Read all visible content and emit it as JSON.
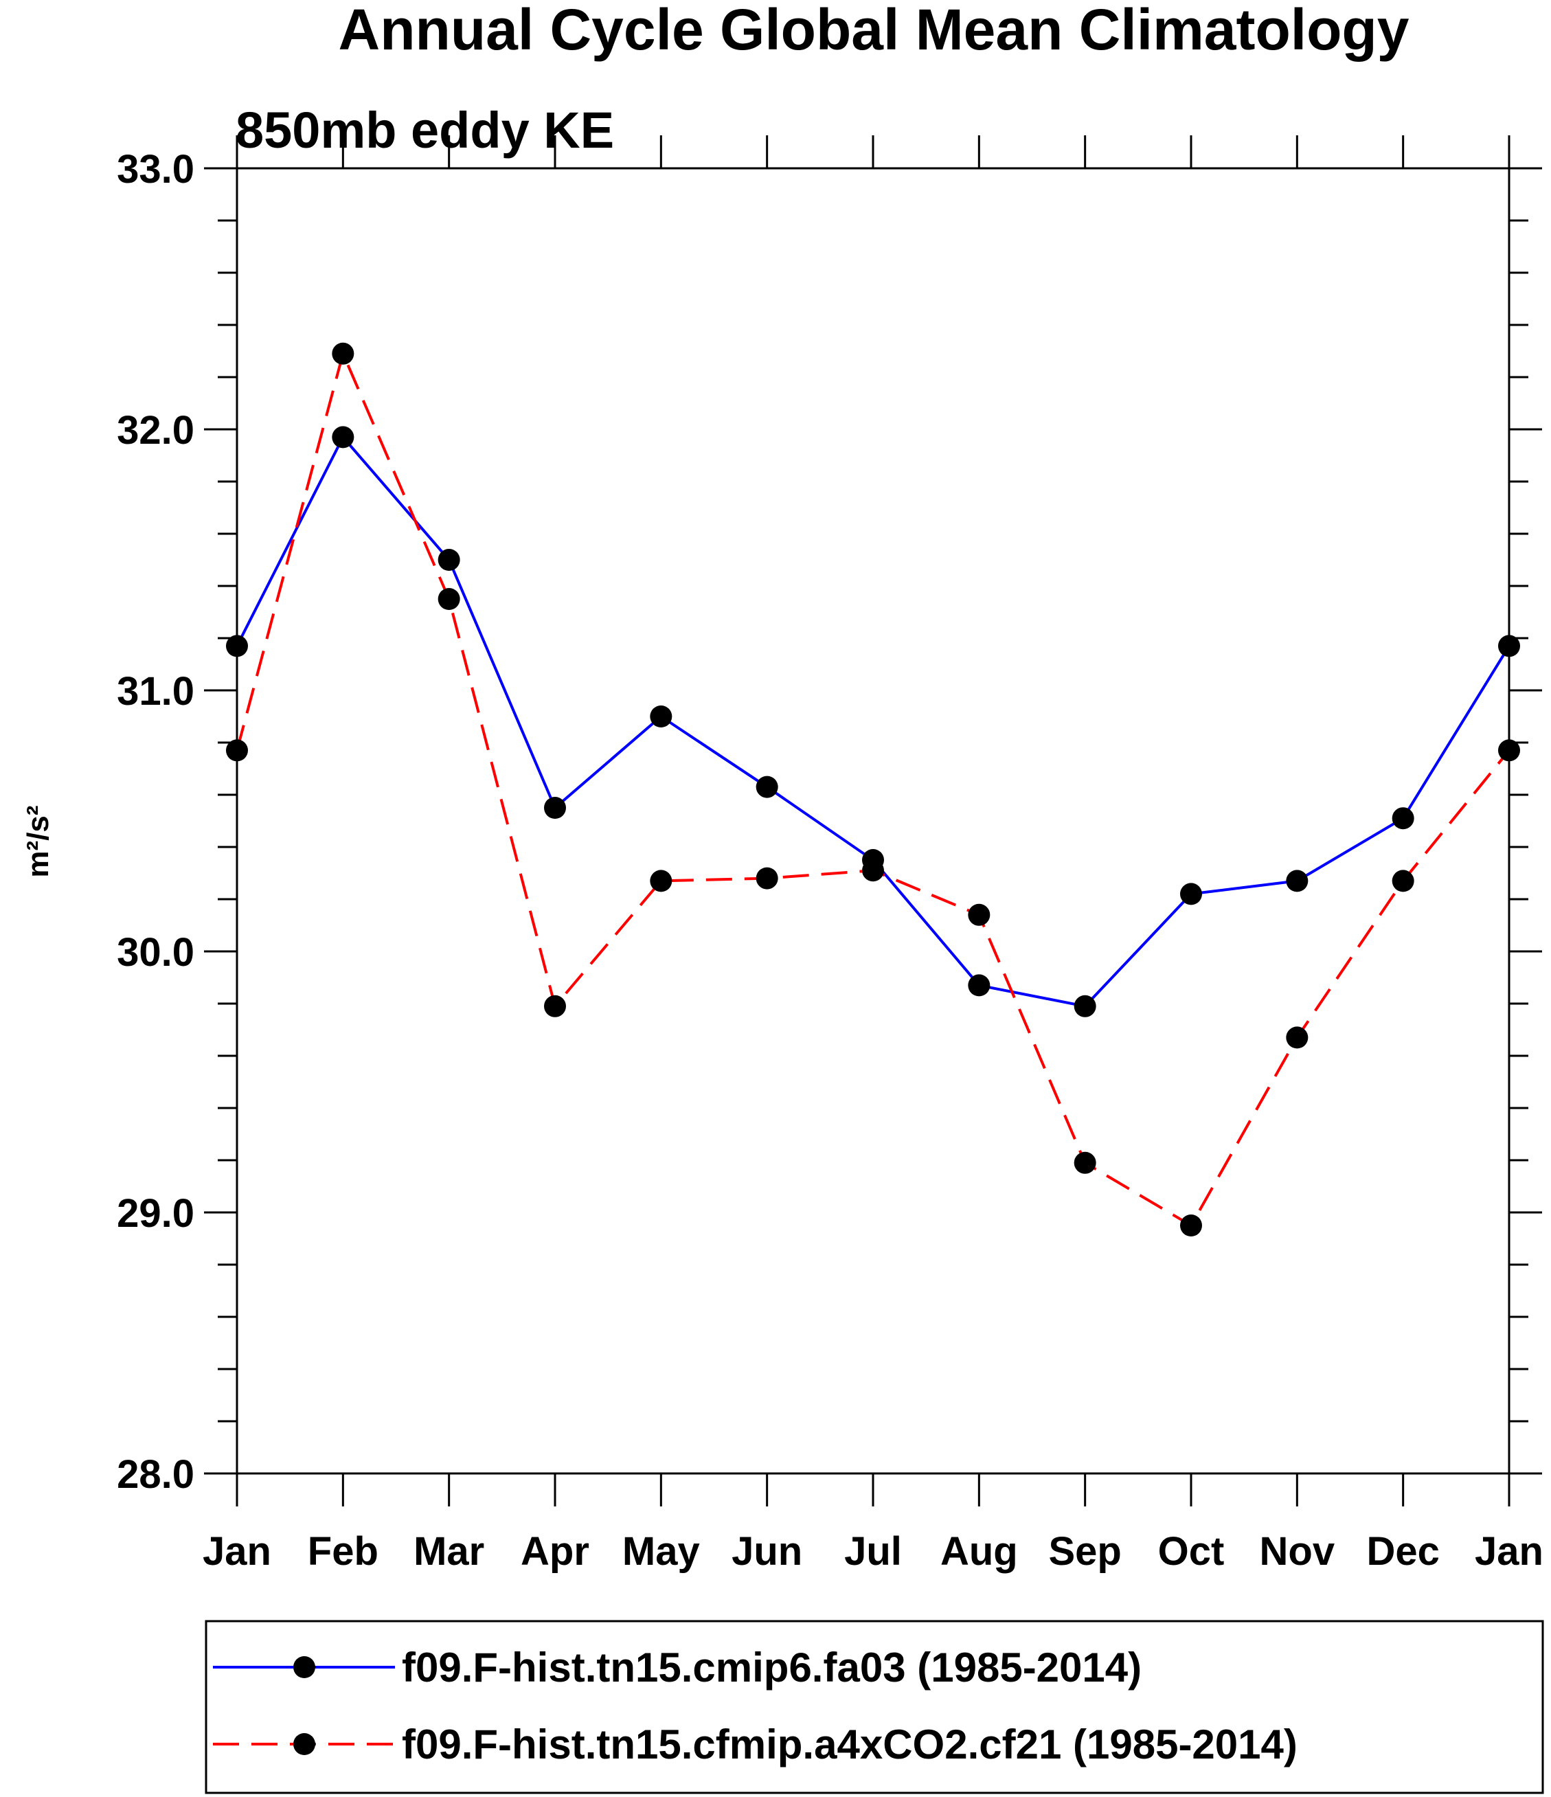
{
  "chart_data": {
    "type": "line",
    "title": "Annual Cycle Global Mean Climatology",
    "subtitle": "850mb eddy KE",
    "xlabel": "",
    "ylabel": "m²/s²",
    "categories": [
      "Jan",
      "Feb",
      "Mar",
      "Apr",
      "May",
      "Jun",
      "Jul",
      "Aug",
      "Sep",
      "Oct",
      "Nov",
      "Dec",
      "Jan"
    ],
    "ylim": [
      28.0,
      33.0
    ],
    "y_ticks": [
      "28.0",
      "29.0",
      "30.0",
      "31.0",
      "32.0",
      "33.0"
    ],
    "grid": false,
    "legend_position": "bottom",
    "series": [
      {
        "name": "f09.F-hist.tn15.cmip6.fa03 (1985-2014)",
        "color": "#0000ff",
        "line_style": "solid",
        "marker": "filled-circle",
        "values": [
          31.17,
          31.97,
          31.5,
          30.55,
          30.9,
          30.63,
          30.35,
          29.87,
          29.79,
          30.22,
          30.27,
          30.51,
          31.17
        ]
      },
      {
        "name": "f09.F-hist.tn15.cfmip.a4xCO2.cf21 (1985-2014)",
        "color": "#ff0000",
        "line_style": "dashed",
        "marker": "filled-circle",
        "values": [
          30.77,
          32.29,
          31.35,
          29.79,
          30.27,
          30.28,
          30.31,
          30.14,
          29.19,
          28.95,
          29.67,
          30.27,
          30.77
        ]
      }
    ]
  }
}
